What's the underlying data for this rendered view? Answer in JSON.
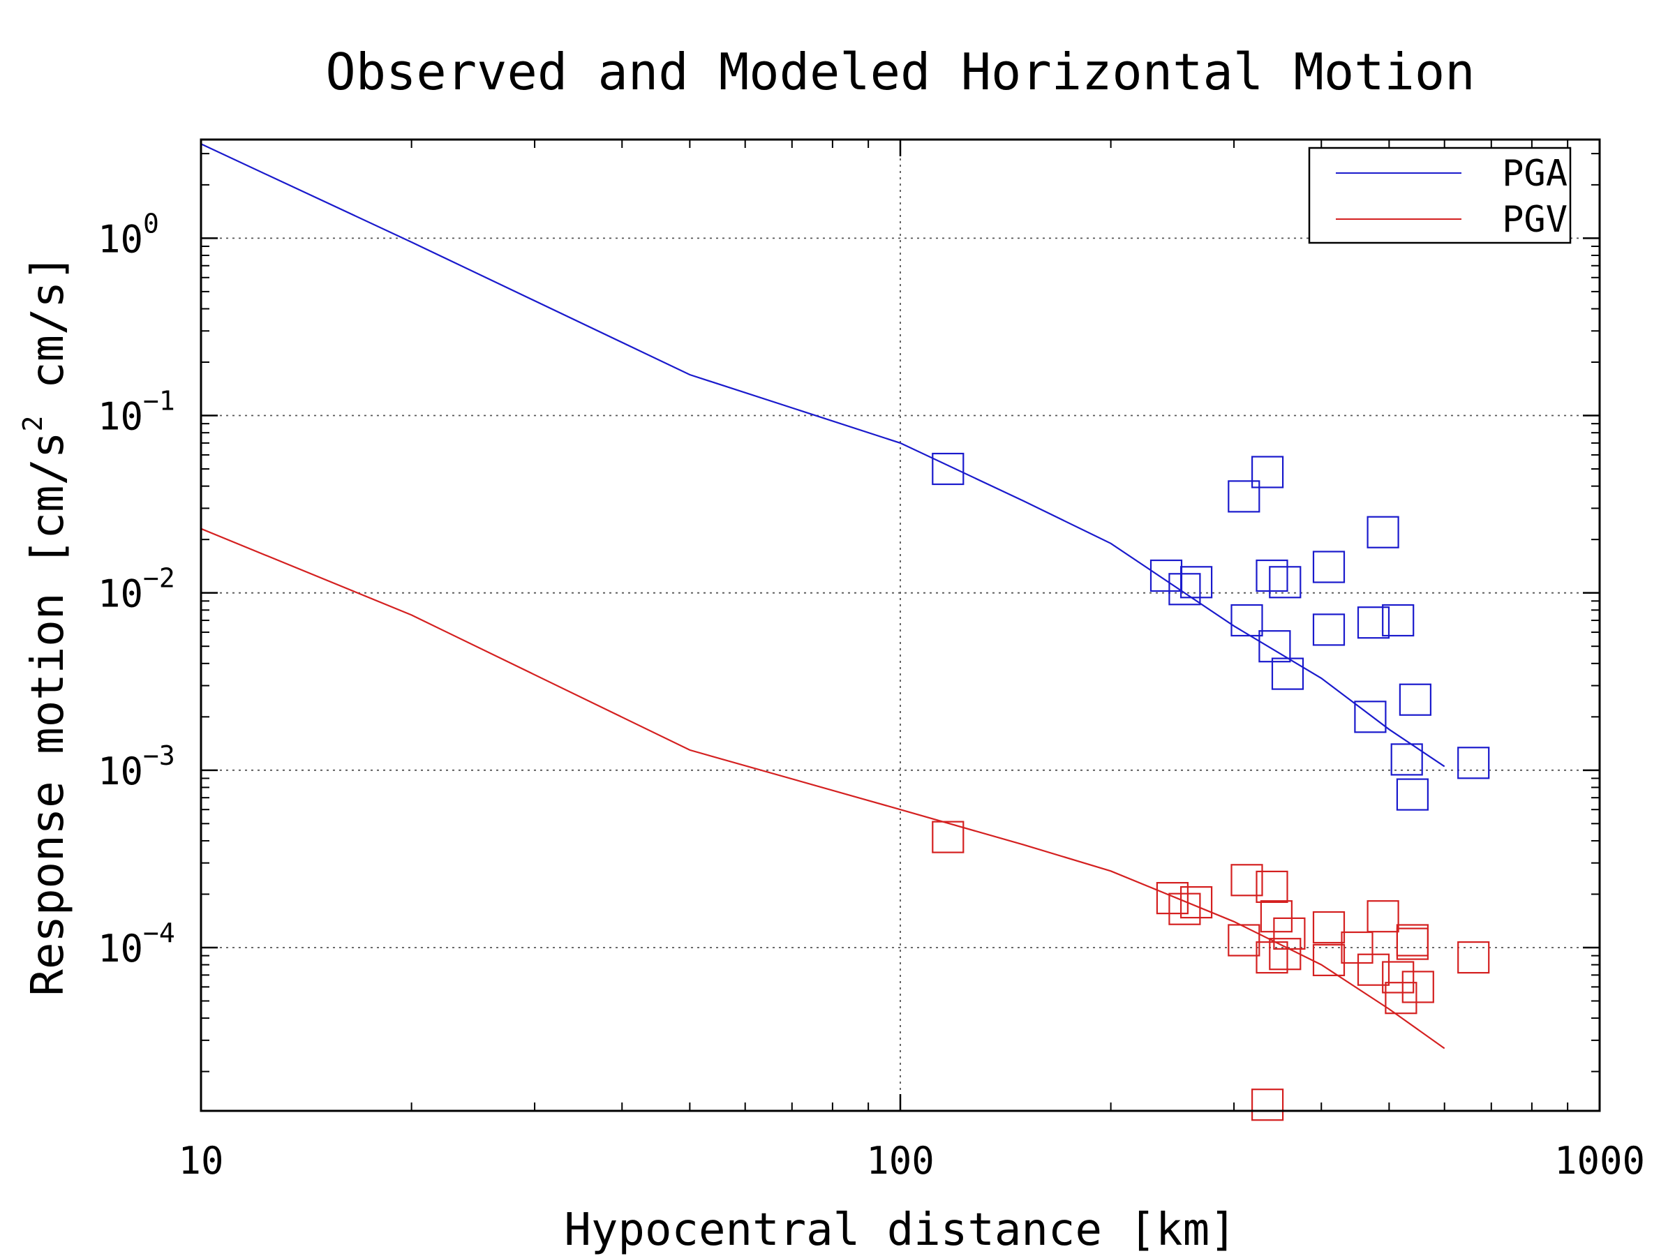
{
  "chart_data": {
    "type": "scatter",
    "title": "Observed and Modeled Horizontal Motion",
    "xlabel": "Hypocentral distance [km]",
    "ylabel": "Response motion [cm/s² cm/s]",
    "ylabel_parts": {
      "before": "Response motion [cm/s",
      "superscript": "2",
      "after": " cm/s]"
    },
    "x_scale": "log",
    "y_scale": "log",
    "xlim": [
      10,
      1000
    ],
    "ylim": [
      1.2e-05,
      3.6
    ],
    "grid": true,
    "legend_position": "top-right",
    "x_ticks": [
      {
        "value": 10,
        "label": "10"
      },
      {
        "value": 100,
        "label": "100"
      },
      {
        "value": 1000,
        "label": "1000"
      }
    ],
    "y_ticks": [
      {
        "value": 1,
        "base": "10",
        "exp": "0"
      },
      {
        "value": 0.1,
        "base": "10",
        "exp": "−1"
      },
      {
        "value": 0.01,
        "base": "10",
        "exp": "−2"
      },
      {
        "value": 0.001,
        "base": "10",
        "exp": "−3"
      },
      {
        "value": 0.0001,
        "base": "10",
        "exp": "−4"
      }
    ],
    "series": [
      {
        "name": "PGA",
        "color": "#1a1acc",
        "model": {
          "x": [
            10,
            20,
            50,
            100,
            150,
            200,
            300,
            400,
            500,
            600
          ],
          "y": [
            3.4,
            0.95,
            0.17,
            0.07,
            0.033,
            0.019,
            0.0065,
            0.0033,
            0.0017,
            0.00105
          ]
        },
        "observed": {
          "x": [
            117,
            240,
            255,
            265,
            310,
            313,
            335,
            340,
            355,
            343,
            358,
            410,
            410,
            470,
            475,
            490,
            515,
            530,
            545,
            540,
            660
          ],
          "y": [
            0.05,
            0.0125,
            0.0105,
            0.0115,
            0.035,
            0.007,
            0.048,
            0.0125,
            0.0115,
            0.005,
            0.0035,
            0.014,
            0.0062,
            0.002,
            0.0068,
            0.022,
            0.007,
            0.00115,
            0.0025,
            0.00073,
            0.0011
          ]
        }
      },
      {
        "name": "PGV",
        "color": "#d42020",
        "model": {
          "x": [
            10,
            20,
            50,
            100,
            150,
            200,
            300,
            400,
            500,
            600
          ],
          "y": [
            0.023,
            0.0075,
            0.0013,
            0.0006,
            0.00038,
            0.00027,
            0.00014,
            8e-05,
            4.5e-05,
            2.7e-05
          ]
        },
        "observed": {
          "x": [
            117,
            245,
            255,
            265,
            310,
            313,
            335,
            340,
            345,
            340,
            355,
            360,
            410,
            410,
            450,
            475,
            490,
            515,
            520,
            540,
            540,
            550,
            660
          ],
          "y": [
            0.00042,
            0.00019,
            0.000165,
            0.00018,
            0.00011,
            0.00024,
            1.3e-05,
            0.00022,
            0.00015,
            8.8e-05,
            9.2e-05,
            0.00012,
            8.5e-05,
            0.00013,
            0.0001,
            7.5e-05,
            0.00015,
            6.8e-05,
            5.2e-05,
            0.000105,
            0.00011,
            6e-05,
            8.8e-05
          ]
        }
      }
    ]
  }
}
